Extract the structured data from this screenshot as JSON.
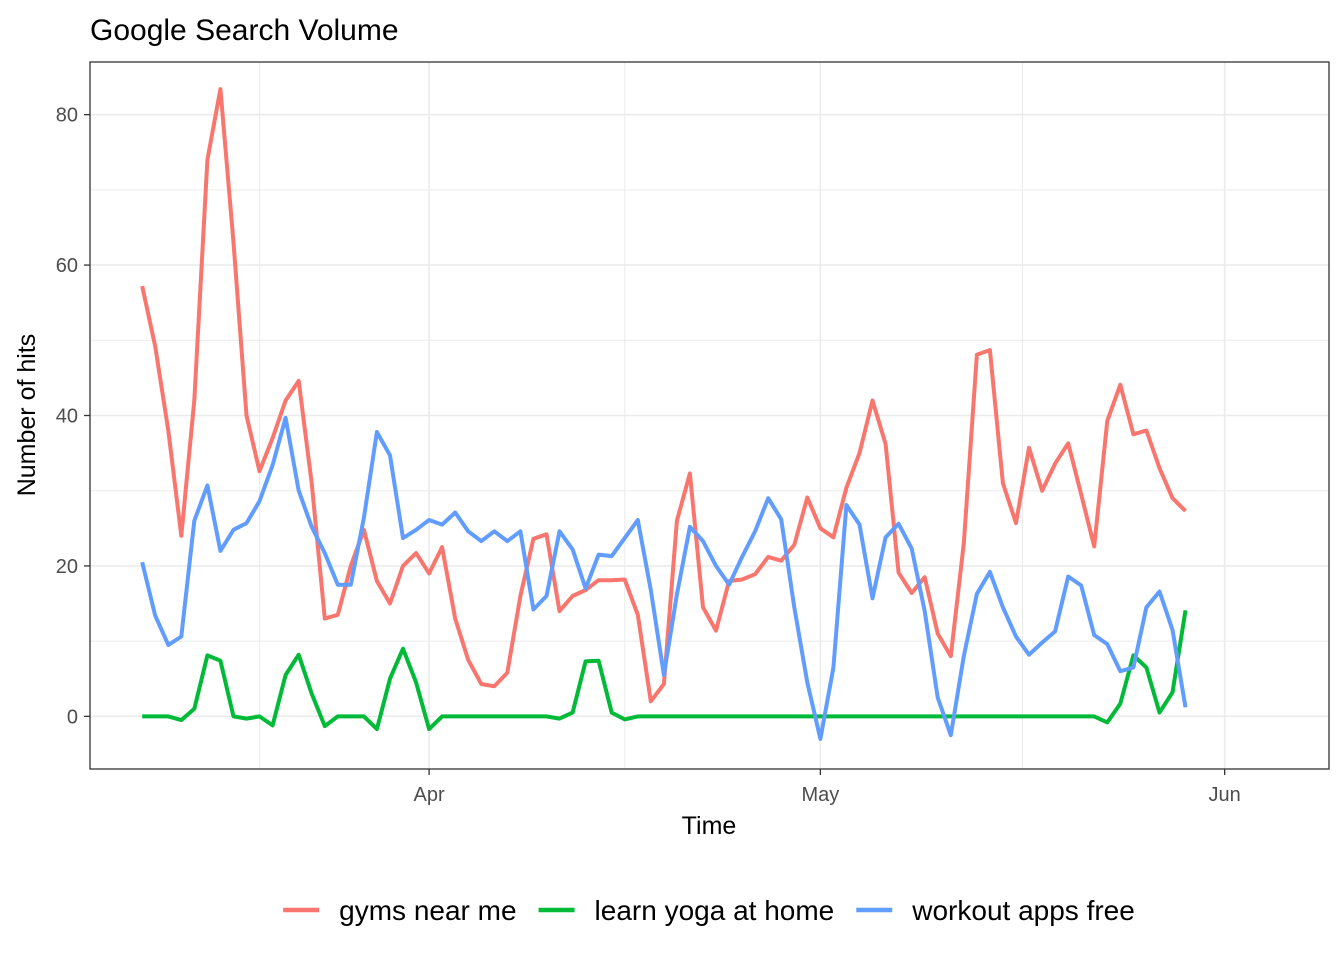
{
  "chart_data": {
    "type": "line",
    "title": "Google Search Volume",
    "xlabel": "Time",
    "ylabel": "Number of hits",
    "x_start": "2020-03-10",
    "x_end": "2020-06-04",
    "xlim": [
      "2020-03-06",
      "2020-06-09"
    ],
    "ylim": [
      -7,
      87
    ],
    "x_ticks": [
      {
        "date": "2020-04-01",
        "label": "Apr"
      },
      {
        "date": "2020-05-01",
        "label": "May"
      },
      {
        "date": "2020-06-01",
        "label": "Jun"
      }
    ],
    "y_ticks": [
      0,
      20,
      40,
      60,
      80
    ],
    "grid": true,
    "legend_position": "bottom",
    "series": [
      {
        "name": "gyms near me",
        "color": "#F8766D",
        "values": [
          57.2,
          49.2,
          38,
          24,
          42,
          74,
          83.4,
          63,
          40,
          32.6,
          37,
          42,
          44.6,
          31,
          13,
          13.5,
          20,
          24.8,
          18,
          15,
          20,
          21.7,
          19,
          22.5,
          13,
          7.5,
          4.3,
          4,
          5.8,
          16,
          23.6,
          24.2,
          14,
          16,
          16.8,
          18.1,
          18.1,
          18.2,
          13.5,
          2,
          4.3,
          26,
          32.3,
          14.5,
          11.4,
          18,
          18.2,
          18.9,
          21.2,
          20.7,
          22.8,
          29.1,
          25,
          23.8,
          30.4,
          35,
          42,
          36.2,
          19.1,
          16.4,
          18.5,
          11,
          8,
          23,
          48.1,
          48.7,
          31,
          25.7,
          35.7,
          30,
          33.6,
          36.3,
          29.5,
          22.6,
          39.3,
          44.1,
          37.5,
          38,
          33,
          29,
          27.3
        ]
      },
      {
        "name": "learn yoga at home",
        "color": "#00BA38",
        "values": [
          0,
          0,
          0,
          -0.5,
          1,
          8.1,
          7.4,
          0,
          -0.3,
          0,
          -1.2,
          5.5,
          8.2,
          3,
          -1.3,
          0,
          0,
          0,
          -1.7,
          5,
          9,
          4.5,
          -1.7,
          0,
          0,
          0,
          0,
          0,
          0,
          0,
          0,
          0,
          -0.3,
          0.5,
          7.3,
          7.4,
          0.5,
          -0.4,
          0,
          0,
          0,
          0,
          0,
          0,
          0,
          0,
          0,
          0,
          0,
          0,
          0,
          0,
          0,
          0,
          0,
          0,
          0,
          0,
          0,
          0,
          0,
          0,
          0,
          0,
          0,
          0,
          0,
          0,
          0,
          0,
          0,
          0,
          0,
          0,
          -0.8,
          1.7,
          8.1,
          6.5,
          0.5,
          3.2,
          14.1
        ]
      },
      {
        "name": "workout apps free",
        "color": "#619CFF",
        "values": [
          20.5,
          13.4,
          9.5,
          10.6,
          26,
          30.7,
          22,
          24.8,
          25.7,
          28.6,
          33.4,
          39.7,
          30,
          25.2,
          21.7,
          17.5,
          17.5,
          26.4,
          37.8,
          34.7,
          23.7,
          24.8,
          26.1,
          25.5,
          27.1,
          24.6,
          23.3,
          24.6,
          23.3,
          24.6,
          14.2,
          16,
          24.6,
          22.2,
          17,
          21.5,
          21.3,
          23.7,
          26.1,
          16.8,
          5.5,
          16.2,
          25.2,
          23.3,
          20,
          17.5,
          21.2,
          24.6,
          29,
          26.2,
          14.5,
          4.5,
          -3,
          6.5,
          28.1,
          25.5,
          15.7,
          23.8,
          25.6,
          22.3,
          14,
          2.5,
          -2.5,
          8,
          16.3,
          19.2,
          14.5,
          10.6,
          8.2,
          9.8,
          11.3,
          18.6,
          17.4,
          10.8,
          9.6,
          6,
          6.5,
          14.5,
          16.6,
          11.5,
          1.2
        ]
      }
    ]
  }
}
